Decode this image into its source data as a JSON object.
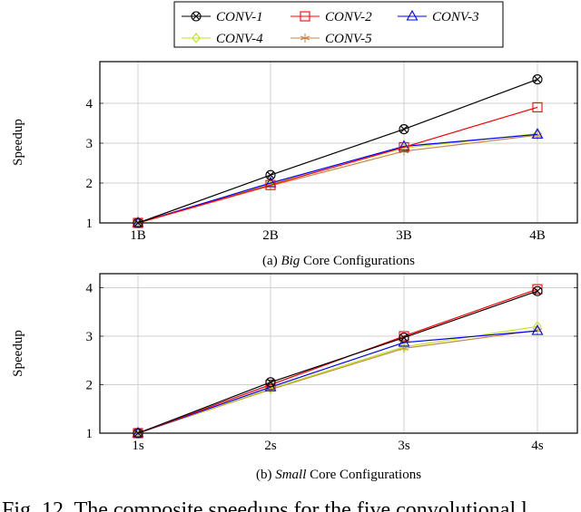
{
  "colors": {
    "CONV-1": "#000000",
    "CONV-2": "#ff0000",
    "CONV-3": "#0000ff",
    "CONV-4": "#bfe619",
    "CONV-5": "#c8864a"
  },
  "legend": [
    "CONV-1",
    "CONV-2",
    "CONV-3",
    "CONV-4",
    "CONV-5"
  ],
  "markers": {
    "CONV-1": "circle-x",
    "CONV-2": "square",
    "CONV-3": "triangle",
    "CONV-4": "diamond",
    "CONV-5": "star"
  },
  "chart_data": [
    {
      "type": "line",
      "caption_prefix": "(a) ",
      "caption_em": "Big",
      "caption_suffix": " Core Configurations",
      "categories": [
        "1B",
        "2B",
        "3B",
        "4B"
      ],
      "ylabel": "Speedup",
      "ylim": [
        1,
        4.75
      ],
      "yticks": [
        1,
        2,
        3,
        4
      ],
      "grid": true,
      "series": [
        {
          "name": "CONV-1",
          "values": [
            1,
            2.2,
            3.35,
            4.6
          ]
        },
        {
          "name": "CONV-2",
          "values": [
            1,
            1.95,
            2.9,
            3.9
          ]
        },
        {
          "name": "CONV-3",
          "values": [
            1,
            2.0,
            2.92,
            3.22
          ]
        },
        {
          "name": "CONV-4",
          "values": [
            1,
            1.97,
            2.88,
            3.24
          ]
        },
        {
          "name": "CONV-5",
          "values": [
            1,
            1.93,
            2.8,
            3.2
          ]
        }
      ]
    },
    {
      "type": "line",
      "caption_prefix": "(b) ",
      "caption_em": "Small",
      "caption_suffix": " Core Configurations",
      "categories": [
        "1s",
        "2s",
        "3s",
        "4s"
      ],
      "ylabel": "Speedup",
      "ylim": [
        1,
        4.3
      ],
      "yticks": [
        1,
        2,
        3,
        4
      ],
      "grid": true,
      "series": [
        {
          "name": "CONV-1",
          "values": [
            1,
            2.05,
            2.97,
            3.93
          ]
        },
        {
          "name": "CONV-2",
          "values": [
            1,
            2.0,
            3.0,
            3.97
          ]
        },
        {
          "name": "CONV-3",
          "values": [
            1,
            1.95,
            2.87,
            3.11
          ]
        },
        {
          "name": "CONV-4",
          "values": [
            1,
            1.92,
            2.78,
            3.2
          ]
        },
        {
          "name": "CONV-5",
          "values": [
            1,
            1.9,
            2.75,
            3.12
          ]
        }
      ]
    }
  ],
  "figure_caption": "Fig. 12. The composite speedups for the five convolutional l"
}
